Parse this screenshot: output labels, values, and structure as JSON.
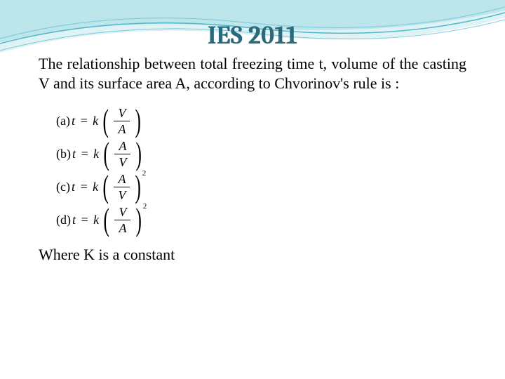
{
  "title": {
    "text": "IES 2011",
    "fontsize": 36,
    "color": "#2a6a7a"
  },
  "body": {
    "text": "The relationship between total freezing time t, volume of the casting V and its surface area A, according to Chvorinov's rule is :",
    "fontsize": 22
  },
  "options": [
    {
      "label": "(a)",
      "lhs": "t = k",
      "num": "V",
      "den": "A",
      "exp": ""
    },
    {
      "label": "(b)",
      "lhs": "t = k",
      "num": "A",
      "den": "V",
      "exp": ""
    },
    {
      "label": "(c)",
      "lhs": "t = k",
      "num": "A",
      "den": "V",
      "exp": "2"
    },
    {
      "label": "(d)",
      "lhs": "t = k",
      "num": "V",
      "den": "A",
      "exp": "2"
    }
  ],
  "option_fontsize": 18,
  "footer": {
    "text": "Where K is a constant",
    "fontsize": 22
  },
  "wave": {
    "stroke": "#4fb8c9",
    "fill1": "#bce5ec",
    "fill2": "#dff3f6",
    "fill3": "#ffffff"
  }
}
